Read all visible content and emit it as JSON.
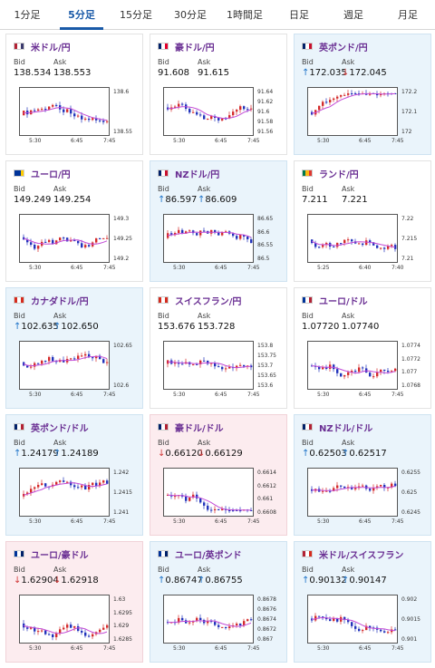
{
  "tabs": [
    {
      "label": "1分足",
      "active": false
    },
    {
      "label": "5分足",
      "active": true
    },
    {
      "label": "15分足",
      "active": false
    },
    {
      "label": "30分足",
      "active": false
    },
    {
      "label": "1時間足",
      "active": false
    },
    {
      "label": "日足",
      "active": false
    },
    {
      "label": "週足",
      "active": false
    },
    {
      "label": "月足",
      "active": false
    }
  ],
  "labels": {
    "bid": "Bid",
    "ask": "Ask"
  },
  "colors": {
    "up_arrow": "#1e73c8",
    "down_arrow": "#d23a3a",
    "candle_up": "#d42b2b",
    "candle_down": "#2233bb",
    "ma_line": "#c24ad6",
    "pair_text": "#6a2f93"
  },
  "cards": [
    {
      "pair": "米ドル/円",
      "flag": [
        "#b22234",
        "#ffffff",
        "#3c3b6e"
      ],
      "trend": "none",
      "bid": "138.534",
      "ask": "138.553",
      "bid_arrow": "",
      "ask_arrow": "",
      "yticks": [
        "138.6",
        "138.55"
      ],
      "xticks": [
        "5:30",
        "6:45",
        "7:45"
      ]
    },
    {
      "pair": "豪ドル/円",
      "flag": [
        "#012169",
        "#ffffff",
        "#e4002b"
      ],
      "trend": "none",
      "bid": "91.608",
      "ask": "91.615",
      "bid_arrow": "",
      "ask_arrow": "",
      "yticks": [
        "91.64",
        "91.62",
        "91.6",
        "91.58",
        "91.56"
      ],
      "xticks": [
        "5:30",
        "6:45",
        "7:45"
      ]
    },
    {
      "pair": "英ポンド/円",
      "flag": [
        "#012169",
        "#ffffff",
        "#c8102e"
      ],
      "trend": "up",
      "bid": "172.035",
      "ask": "172.045",
      "bid_arrow": "up",
      "ask_arrow": "down",
      "yticks": [
        "172.2",
        "172.1",
        "172"
      ],
      "xticks": [
        "5:30",
        "6:45",
        "7:45"
      ]
    },
    {
      "pair": "ユーロ/円",
      "flag": [
        "#003399",
        "#003399",
        "#ffcc00"
      ],
      "trend": "none",
      "bid": "149.249",
      "ask": "149.254",
      "bid_arrow": "",
      "ask_arrow": "",
      "yticks": [
        "149.3",
        "149.25",
        "149.2"
      ],
      "xticks": [
        "5:30",
        "6:45",
        "7:45"
      ]
    },
    {
      "pair": "NZドル/円",
      "flag": [
        "#012169",
        "#ffffff",
        "#c8102e"
      ],
      "trend": "up",
      "bid": "86.597",
      "ask": "86.609",
      "bid_arrow": "up",
      "ask_arrow": "up",
      "yticks": [
        "86.65",
        "86.6",
        "86.55",
        "86.5"
      ],
      "xticks": [
        "5:30",
        "6:45",
        "7:45"
      ]
    },
    {
      "pair": "ランド/円",
      "flag": [
        "#007a4d",
        "#ffb612",
        "#de3831"
      ],
      "trend": "none",
      "bid": "7.211",
      "ask": "7.221",
      "bid_arrow": "",
      "ask_arrow": "",
      "yticks": [
        "7.22",
        "7.215",
        "7.21"
      ],
      "xticks": [
        "5:25",
        "6:40",
        "7:40"
      ]
    },
    {
      "pair": "カナダドル/円",
      "flag": [
        "#d52b1e",
        "#ffffff",
        "#d52b1e"
      ],
      "trend": "up",
      "bid": "102.635",
      "ask": "102.650",
      "bid_arrow": "up",
      "ask_arrow": "up",
      "yticks": [
        "102.65",
        "102.6"
      ],
      "xticks": [
        "5:30",
        "6:45",
        "7:45"
      ]
    },
    {
      "pair": "スイスフラン/円",
      "flag": [
        "#d52b1e",
        "#ffffff",
        "#d52b1e"
      ],
      "trend": "none",
      "bid": "153.676",
      "ask": "153.728",
      "bid_arrow": "",
      "ask_arrow": "",
      "yticks": [
        "153.8",
        "153.75",
        "153.7",
        "153.65",
        "153.6"
      ],
      "xticks": [
        "5:30",
        "6:45",
        "7:45"
      ]
    },
    {
      "pair": "ユーロ/ドル",
      "flag": [
        "#003399",
        "#ffffff",
        "#b22234"
      ],
      "trend": "none",
      "bid": "1.07720",
      "ask": "1.07740",
      "bid_arrow": "",
      "ask_arrow": "",
      "yticks": [
        "1.0774",
        "1.0772",
        "1.077",
        "1.0768"
      ],
      "xticks": [
        "5:30",
        "6:45",
        "7:45"
      ]
    },
    {
      "pair": "英ポンド/ドル",
      "flag": [
        "#012169",
        "#ffffff",
        "#b22234"
      ],
      "trend": "up",
      "bid": "1.24179",
      "ask": "1.24189",
      "bid_arrow": "up",
      "ask_arrow": "up",
      "yticks": [
        "1.242",
        "1.2415",
        "1.241"
      ],
      "xticks": [
        "5:30",
        "6:45",
        "7:45"
      ]
    },
    {
      "pair": "豪ドル/ドル",
      "flag": [
        "#012169",
        "#ffffff",
        "#b22234"
      ],
      "trend": "down",
      "bid": "0.66120",
      "ask": "0.66129",
      "bid_arrow": "down",
      "ask_arrow": "down",
      "yticks": [
        "0.6614",
        "0.6612",
        "0.661",
        "0.6608"
      ],
      "xticks": [
        "5:30",
        "6:45",
        "7:45"
      ]
    },
    {
      "pair": "NZドル/ドル",
      "flag": [
        "#012169",
        "#ffffff",
        "#b22234"
      ],
      "trend": "up",
      "bid": "0.62503",
      "ask": "0.62517",
      "bid_arrow": "up",
      "ask_arrow": "up",
      "yticks": [
        "0.6255",
        "0.625",
        "0.6245"
      ],
      "xticks": [
        "5:30",
        "6:45",
        "7:45"
      ]
    },
    {
      "pair": "ユーロ/豪ドル",
      "flag": [
        "#003399",
        "#ffffff",
        "#012169"
      ],
      "trend": "down",
      "bid": "1.62904",
      "ask": "1.62918",
      "bid_arrow": "down",
      "ask_arrow": "down",
      "yticks": [
        "1.63",
        "1.6295",
        "1.629",
        "1.6285"
      ],
      "xticks": [
        "5:30",
        "6:45",
        "7:45"
      ]
    },
    {
      "pair": "ユーロ/英ポンド",
      "flag": [
        "#003399",
        "#ffffff",
        "#012169"
      ],
      "trend": "up",
      "bid": "0.86747",
      "ask": "0.86755",
      "bid_arrow": "up",
      "ask_arrow": "up",
      "yticks": [
        "0.8678",
        "0.8676",
        "0.8674",
        "0.8672",
        "0.867"
      ],
      "xticks": [
        "5:30",
        "6:45",
        "7:45"
      ]
    },
    {
      "pair": "米ドル/スイスフラン",
      "flag": [
        "#b22234",
        "#ffffff",
        "#d52b1e"
      ],
      "trend": "up",
      "bid": "0.90132",
      "ask": "0.90147",
      "bid_arrow": "up",
      "ask_arrow": "up",
      "yticks": [
        "0.902",
        "0.9015",
        "0.901"
      ],
      "xticks": [
        "5:30",
        "6:45",
        "7:45"
      ]
    }
  ]
}
